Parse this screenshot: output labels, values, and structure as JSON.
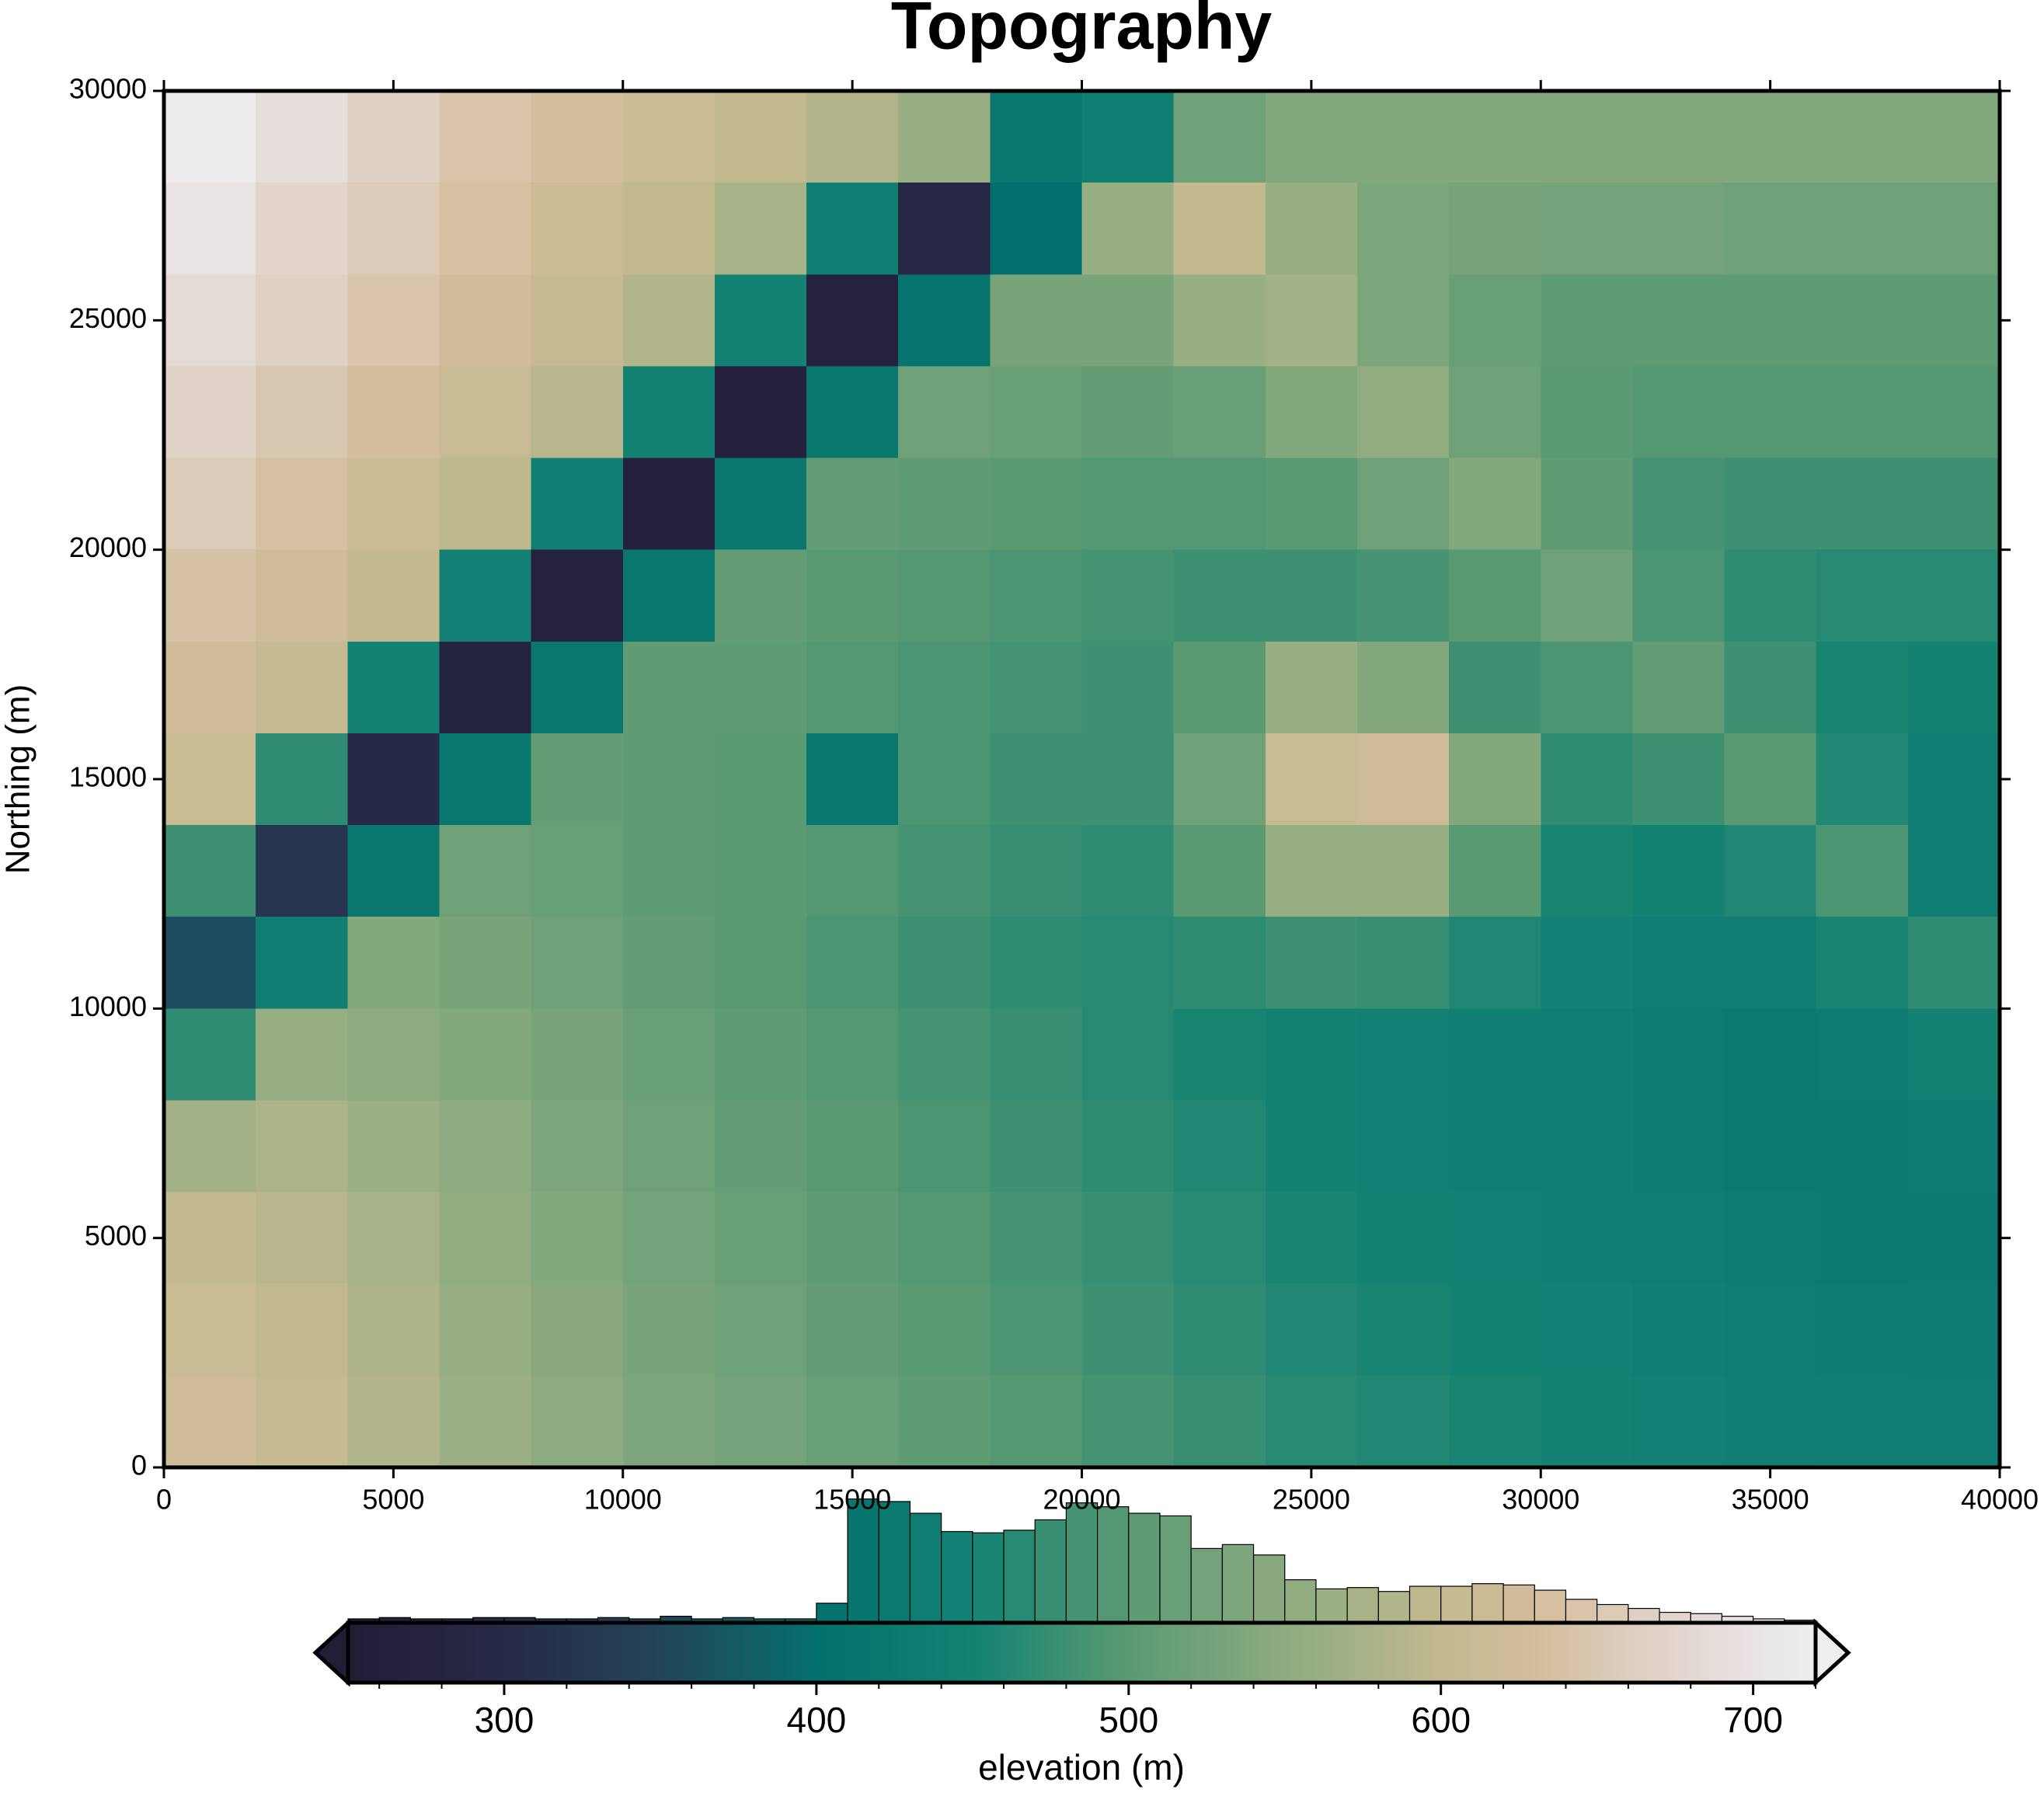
{
  "chart_data": {
    "type": "heatmap",
    "title": "Topography",
    "ylabel": "Northing (m)",
    "xlim": [
      0,
      40000
    ],
    "ylim": [
      0,
      30000
    ],
    "xticks": [
      0,
      5000,
      10000,
      15000,
      20000,
      25000,
      30000,
      35000,
      40000
    ],
    "yticks": [
      0,
      5000,
      10000,
      15000,
      20000,
      25000,
      30000
    ],
    "x": [
      1000,
      3000,
      5000,
      7000,
      9000,
      11000,
      13000,
      15000,
      17000,
      19000,
      21000,
      23000,
      25000,
      27000,
      29000,
      31000,
      33000,
      35000,
      37000,
      39000
    ],
    "y": [
      29000,
      27000,
      25000,
      23000,
      21000,
      19000,
      17000,
      15000,
      13000,
      11000,
      9000,
      7000,
      5000,
      3000,
      1000
    ],
    "z": [
      [
        715,
        690,
        665,
        645,
        630,
        615,
        600,
        585,
        560,
        420,
        440,
        520,
        540,
        540,
        540,
        540,
        540,
        540,
        540,
        540
      ],
      [
        700,
        675,
        655,
        635,
        615,
        600,
        575,
        440,
        290,
        400,
        560,
        600,
        560,
        535,
        530,
        525,
        525,
        520,
        520,
        520
      ],
      [
        685,
        665,
        645,
        625,
        605,
        585,
        450,
        270,
        410,
        530,
        530,
        560,
        570,
        535,
        515,
        505,
        505,
        505,
        505,
        505
      ],
      [
        670,
        650,
        630,
        610,
        590,
        450,
        265,
        420,
        520,
        515,
        510,
        515,
        540,
        555,
        520,
        500,
        495,
        495,
        495,
        495
      ],
      [
        655,
        635,
        615,
        595,
        440,
        265,
        420,
        510,
        505,
        500,
        495,
        495,
        500,
        520,
        540,
        505,
        485,
        480,
        480,
        480
      ],
      [
        640,
        620,
        600,
        445,
        270,
        420,
        510,
        500,
        495,
        490,
        485,
        480,
        480,
        485,
        500,
        520,
        490,
        470,
        465,
        465
      ],
      [
        625,
        605,
        450,
        280,
        420,
        505,
        505,
        495,
        490,
        485,
        480,
        500,
        560,
        540,
        480,
        490,
        510,
        480,
        455,
        450
      ],
      [
        610,
        470,
        300,
        420,
        510,
        505,
        500,
        420,
        490,
        480,
        480,
        520,
        610,
        620,
        540,
        470,
        480,
        500,
        460,
        440
      ],
      [
        480,
        320,
        420,
        520,
        515,
        505,
        500,
        495,
        485,
        475,
        470,
        500,
        560,
        560,
        500,
        455,
        450,
        460,
        490,
        440
      ],
      [
        360,
        440,
        540,
        530,
        520,
        510,
        500,
        490,
        480,
        470,
        465,
        470,
        480,
        475,
        460,
        445,
        435,
        435,
        455,
        470
      ],
      [
        470,
        560,
        550,
        540,
        530,
        515,
        505,
        495,
        485,
        475,
        465,
        455,
        450,
        445,
        440,
        435,
        430,
        425,
        430,
        450
      ],
      [
        570,
        580,
        565,
        550,
        535,
        520,
        510,
        500,
        490,
        480,
        470,
        460,
        450,
        445,
        440,
        435,
        430,
        425,
        425,
        430
      ],
      [
        600,
        590,
        575,
        555,
        540,
        525,
        515,
        505,
        495,
        485,
        475,
        465,
        455,
        450,
        445,
        440,
        435,
        430,
        428,
        428
      ],
      [
        610,
        600,
        580,
        560,
        545,
        530,
        520,
        510,
        500,
        490,
        480,
        470,
        460,
        455,
        450,
        445,
        440,
        435,
        432,
        430
      ],
      [
        620,
        605,
        585,
        565,
        550,
        535,
        525,
        515,
        505,
        495,
        485,
        475,
        465,
        460,
        455,
        450,
        445,
        440,
        438,
        435
      ]
    ],
    "colormap": [
      {
        "value": 250,
        "color": "#241c36"
      },
      {
        "value": 300,
        "color": "#262a47"
      },
      {
        "value": 350,
        "color": "#23445a"
      },
      {
        "value": 400,
        "color": "#04706d"
      },
      {
        "value": 450,
        "color": "#138272"
      },
      {
        "value": 500,
        "color": "#5a9a72"
      },
      {
        "value": 550,
        "color": "#8dab80"
      },
      {
        "value": 600,
        "color": "#c2b98f"
      },
      {
        "value": 630,
        "color": "#d3bd9b"
      },
      {
        "value": 680,
        "color": "#e3d8d3"
      },
      {
        "value": 720,
        "color": "#eeeef2"
      }
    ],
    "colorbar": {
      "label": "elevation (m)",
      "lim": [
        250,
        720
      ],
      "ticks": [
        300,
        400,
        500,
        600,
        700
      ],
      "minor_ticks": [
        260,
        280,
        300,
        320,
        340,
        360,
        380,
        400,
        420,
        440,
        460,
        480,
        500,
        520,
        540,
        560,
        580,
        600,
        620,
        640,
        660,
        680,
        700,
        720
      ]
    },
    "histogram": {
      "bins": [
        250,
        260,
        270,
        280,
        290,
        300,
        310,
        320,
        330,
        340,
        350,
        360,
        370,
        380,
        390,
        400,
        410,
        420,
        430,
        440,
        450,
        460,
        470,
        480,
        490,
        500,
        510,
        520,
        530,
        540,
        550,
        560,
        570,
        580,
        590,
        600,
        610,
        620,
        630,
        640,
        650,
        660,
        670,
        680,
        690,
        700,
        710,
        720
      ],
      "counts": [
        3,
        4,
        3,
        3,
        4,
        4,
        3,
        3,
        4,
        3,
        5,
        3,
        4,
        3,
        3,
        15,
        95,
        93,
        84,
        70,
        69,
        71,
        79,
        92,
        89,
        84,
        82,
        57,
        60,
        52,
        33,
        26,
        27,
        24,
        28,
        28,
        30,
        29,
        25,
        18,
        14,
        11,
        8,
        7,
        5,
        3,
        2
      ]
    }
  }
}
